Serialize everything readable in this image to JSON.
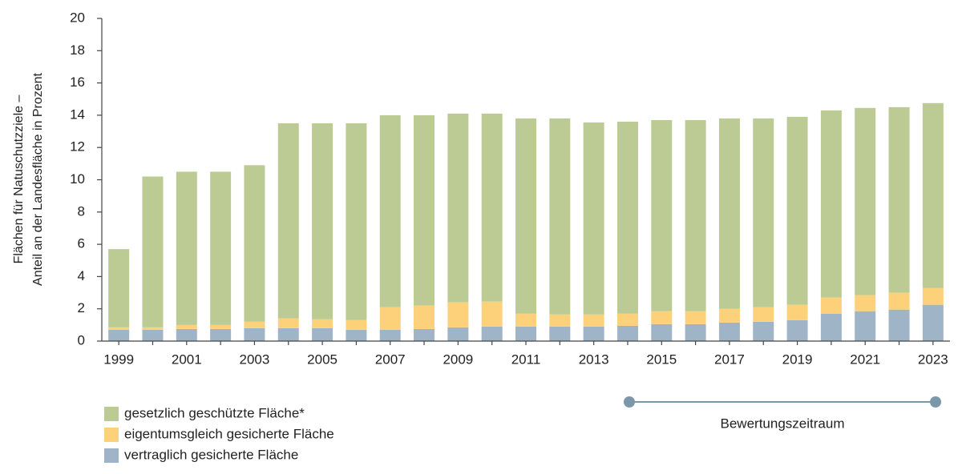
{
  "chart_data": {
    "type": "stacked_bar",
    "ylabel": [
      "Flächen für Natuschutzziele –",
      "Anteil an der Landesfläche in Prozent"
    ],
    "categories": [
      "1999",
      null,
      "2001",
      null,
      "2003",
      null,
      "2005",
      null,
      "2007",
      null,
      "2009",
      null,
      "2011",
      null,
      "2013",
      null,
      "2015",
      null,
      "2017",
      null,
      "2019",
      null,
      "2021",
      null,
      "2023"
    ],
    "series": [
      {
        "name": "vertraglich gesicherte Fläche",
        "color": "#9fb4c6",
        "values": [
          0.7,
          0.7,
          0.75,
          0.75,
          0.8,
          0.8,
          0.8,
          0.7,
          0.7,
          0.75,
          0.85,
          0.9,
          0.9,
          0.9,
          0.9,
          0.95,
          1.05,
          1.05,
          1.15,
          1.2,
          1.3,
          1.7,
          1.85,
          1.95,
          2.25
        ]
      },
      {
        "name": "eigentumsgleich gesicherte Fläche",
        "color": "#fdd17a",
        "values": [
          0.15,
          0.15,
          0.25,
          0.25,
          0.4,
          0.6,
          0.55,
          0.6,
          1.4,
          1.45,
          1.55,
          1.55,
          0.8,
          0.75,
          0.75,
          0.75,
          0.8,
          0.8,
          0.85,
          0.9,
          0.95,
          1.0,
          1.0,
          1.05,
          1.05
        ]
      },
      {
        "name": "gesetzlich geschützte Fläche*",
        "color": "#bccb94",
        "values": [
          4.85,
          9.35,
          9.5,
          9.5,
          9.7,
          12.1,
          12.15,
          12.2,
          11.9,
          11.8,
          11.7,
          11.65,
          12.1,
          12.15,
          11.9,
          11.9,
          11.85,
          11.85,
          11.8,
          11.7,
          11.65,
          11.6,
          11.6,
          11.5,
          11.45
        ]
      }
    ],
    "ylim": [
      0,
      20
    ],
    "yticks": [
      0,
      2,
      4,
      6,
      8,
      10,
      12,
      14,
      16,
      18,
      20
    ],
    "annotation": "Bewertungszeitraum"
  }
}
